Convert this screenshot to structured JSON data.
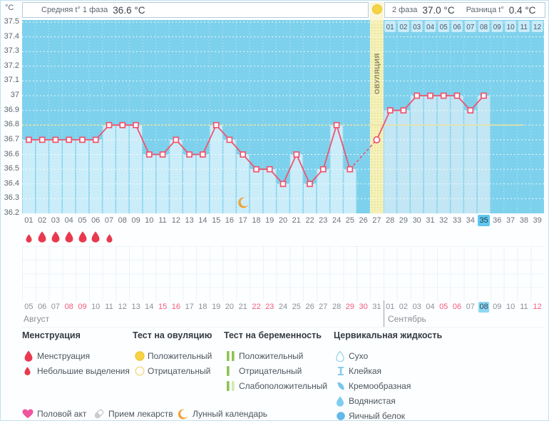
{
  "header": {
    "unit_label": "°C",
    "phase1_label": "Средняя t° 1 фаза",
    "phase1_value": "36.6 °C",
    "phase2_label": "2 фаза",
    "phase2_value": "37.0 °C",
    "diff_label": "Разница t°",
    "diff_value": "0.4 °C"
  },
  "chart_data": {
    "type": "line",
    "ylabel": "°C",
    "ylim": [
      36.2,
      37.5
    ],
    "ytick_step": 0.1,
    "yticks": [
      "37.5",
      "37.4",
      "37.3",
      "37.2",
      "37.1",
      "37",
      "36.9",
      "36.8",
      "36.7",
      "36.6",
      "36.5",
      "36.4",
      "36.3",
      "36.2"
    ],
    "day_labels": [
      "01",
      "02",
      "03",
      "04",
      "05",
      "06",
      "07",
      "08",
      "09",
      "10",
      "11",
      "12",
      "13",
      "14",
      "15",
      "16",
      "17",
      "18",
      "19",
      "20",
      "21",
      "22",
      "23",
      "24",
      "25",
      "26",
      "27",
      "28",
      "29",
      "30",
      "31",
      "32",
      "33",
      "34",
      "35",
      "36",
      "37",
      "38",
      "39"
    ],
    "temperatures": [
      36.7,
      36.7,
      36.7,
      36.7,
      36.7,
      36.7,
      36.8,
      36.8,
      36.8,
      36.6,
      36.6,
      36.7,
      36.6,
      36.6,
      36.8,
      36.7,
      36.6,
      36.5,
      36.5,
      36.4,
      36.6,
      36.4,
      36.5,
      36.8,
      36.5,
      null,
      36.7,
      36.9,
      36.9,
      37.0,
      37.0,
      37.0,
      37.0,
      36.9,
      37.0,
      null,
      null,
      null,
      null
    ],
    "coverline_temp": 36.8,
    "current_day": "35",
    "ovulation": {
      "day": 27,
      "column_label": "ОВУЛЯЦИЯ"
    },
    "dpo_labels": [
      "01",
      "02",
      "03",
      "04",
      "05",
      "06",
      "07",
      "08",
      "09",
      "10",
      "11",
      "12"
    ],
    "menstruation": {
      "small_days": [
        1,
        7
      ],
      "large_days": [
        2,
        3,
        4,
        5,
        6
      ]
    },
    "moon_day": 17,
    "colors": {
      "background": "#7ed1ec",
      "bar_phase1": "#cbedf9",
      "bar_phase2": "#c3e6f4",
      "line": "#f0536e",
      "coverline": "#e9e3a2",
      "ovulation_column": "#f4efb2",
      "ovulation_text": "#85855c",
      "dpo_tab": "#c9ebf9",
      "current_day_highlight": "#5fc8f0",
      "current_date_highlight": "#8bd7f4",
      "menstruation_drop": "#e9394f",
      "weekend_date": "#f25b7e"
    }
  },
  "dates": {
    "months": [
      {
        "name": "Август",
        "days": [
          "05",
          "06",
          "07",
          "08",
          "09",
          "10",
          "11",
          "12",
          "13",
          "14",
          "15",
          "16",
          "17",
          "18",
          "19",
          "20",
          "21",
          "22",
          "23",
          "24",
          "25",
          "26",
          "27",
          "28",
          "29",
          "30",
          "31"
        ],
        "weekends": [
          "08",
          "09",
          "15",
          "16",
          "22",
          "23",
          "29",
          "30"
        ]
      },
      {
        "name": "Сентябрь",
        "days": [
          "01",
          "02",
          "03",
          "04",
          "05",
          "06",
          "07",
          "08",
          "09",
          "10",
          "11",
          "12"
        ],
        "weekends": [
          "05",
          "06",
          "12"
        ],
        "current": "08"
      }
    ]
  },
  "legend": {
    "groups": [
      {
        "title": "Менструация",
        "items": [
          {
            "icon": "drop-large",
            "label": "Менструация"
          },
          {
            "icon": "drop-small",
            "label": "Небольшие выделения"
          }
        ]
      },
      {
        "title": "Тест на овуляцию",
        "items": [
          {
            "icon": "circle-yellow",
            "label": "Положительный"
          },
          {
            "icon": "circle-yellow-outline",
            "label": "Отрицательный"
          }
        ]
      },
      {
        "title": "Тест на беременность",
        "items": [
          {
            "icon": "bars-two",
            "label": "Положительный"
          },
          {
            "icon": "bar-one",
            "label": "Отрицательный"
          },
          {
            "icon": "bars-weak",
            "label": "Слабоположительный"
          }
        ]
      },
      {
        "title": "Цервикальная жидкость",
        "items": [
          {
            "icon": "drop-outline",
            "label": "Сухо"
          },
          {
            "icon": "ibeam",
            "label": "Клейкая"
          },
          {
            "icon": "creamy",
            "label": "Кремообразная"
          },
          {
            "icon": "drop-filled",
            "label": "Водянистая"
          },
          {
            "icon": "circle-blue",
            "label": "Яичный белок"
          }
        ]
      }
    ],
    "extras": [
      {
        "icon": "heart",
        "label": "Половой акт"
      },
      {
        "icon": "pill",
        "label": "Прием лекарств"
      },
      {
        "icon": "moon",
        "label": "Лунный календарь"
      }
    ]
  }
}
